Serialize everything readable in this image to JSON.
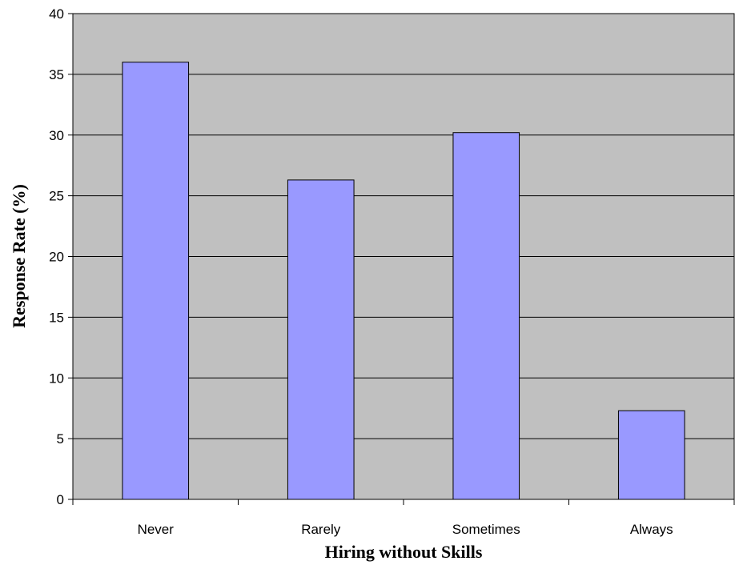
{
  "chart_data": {
    "type": "bar",
    "categories": [
      "Never",
      "Rarely",
      "Sometimes",
      "Always"
    ],
    "values": [
      36.0,
      26.3,
      30.2,
      7.3
    ],
    "xlabel": "Hiring without Skills",
    "ylabel": "Response Rate (%)",
    "ylim": [
      0,
      40
    ],
    "yticks": [
      0,
      5,
      10,
      15,
      20,
      25,
      30,
      35,
      40
    ],
    "grid": true,
    "legend": "none",
    "colors": {
      "plot_background": "#c0c0c0",
      "bar_fill": "#9999ff",
      "bar_stroke": "#000000",
      "gridline": "#000000"
    }
  }
}
